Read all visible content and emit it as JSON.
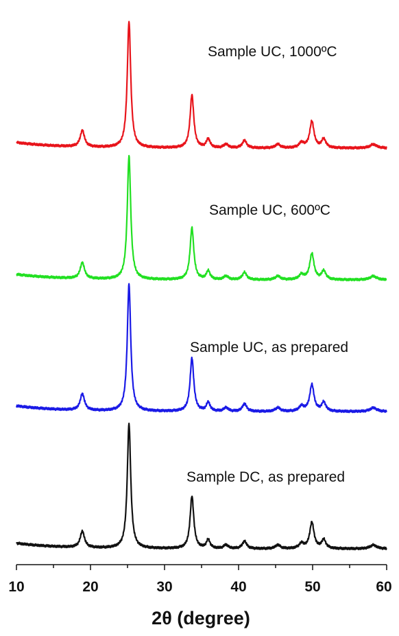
{
  "chart_data": {
    "type": "line",
    "title": "",
    "xlabel": "2θ (degree)",
    "ylabel": "",
    "xlim": [
      10,
      60
    ],
    "x_ticks": [
      "10",
      "20",
      "30",
      "40",
      "50",
      "60"
    ],
    "grid": false,
    "legend": "none",
    "peaks": [
      {
        "x": 18.9,
        "h": 0.13,
        "w": 0.35
      },
      {
        "x": 25.2,
        "h": 1.0,
        "w": 0.28
      },
      {
        "x": 33.7,
        "h": 0.42,
        "w": 0.3
      },
      {
        "x": 35.9,
        "h": 0.07,
        "w": 0.3
      },
      {
        "x": 38.3,
        "h": 0.03,
        "w": 0.35
      },
      {
        "x": 40.8,
        "h": 0.06,
        "w": 0.35
      },
      {
        "x": 45.3,
        "h": 0.03,
        "w": 0.4
      },
      {
        "x": 48.5,
        "h": 0.04,
        "w": 0.4
      },
      {
        "x": 49.9,
        "h": 0.21,
        "w": 0.35
      },
      {
        "x": 51.5,
        "h": 0.07,
        "w": 0.35
      },
      {
        "x": 58.2,
        "h": 0.03,
        "w": 0.55
      }
    ],
    "series": [
      {
        "name": "Sample UC, 1000ºC",
        "color": "#e8141b",
        "offset": 3,
        "scale": 1.0
      },
      {
        "name": "Sample UC, 600ºC",
        "color": "#22e022",
        "offset": 2,
        "scale": 1.0
      },
      {
        "name": "Sample UC, as prepared",
        "color": "#1a1ae6",
        "offset": 1,
        "scale": 1.0
      },
      {
        "name": "Sample DC, as prepared",
        "color": "#111111",
        "offset": 0,
        "scale": 1.0
      }
    ]
  }
}
